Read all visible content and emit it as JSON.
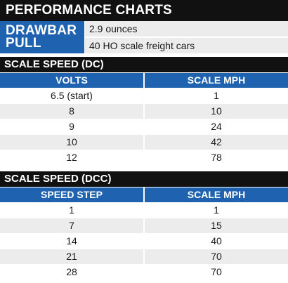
{
  "title": "PERFORMANCE CHARTS",
  "drawbar": {
    "label_line1": "DRAWBAR",
    "label_line2": "PULL",
    "values": [
      "2.9 ounces",
      "40 HO scale freight cars"
    ]
  },
  "dc": {
    "title": "SCALE SPEED (DC)",
    "headers": [
      "VOLTS",
      "SCALE MPH"
    ],
    "rows": [
      [
        "6.5 (start)",
        "1"
      ],
      [
        "8",
        "10"
      ],
      [
        "9",
        "24"
      ],
      [
        "10",
        "42"
      ],
      [
        "12",
        "78"
      ]
    ]
  },
  "dcc": {
    "title": "SCALE SPEED (DCC)",
    "headers": [
      "SPEED STEP",
      "SCALE MPH"
    ],
    "rows": [
      [
        "1",
        "1"
      ],
      [
        "7",
        "15"
      ],
      [
        "14",
        "40"
      ],
      [
        "21",
        "70"
      ],
      [
        "28",
        "70"
      ]
    ]
  },
  "colors": {
    "header_blue": "#1f63b0",
    "bar_black": "#111111",
    "row_shade": "#ececec"
  }
}
